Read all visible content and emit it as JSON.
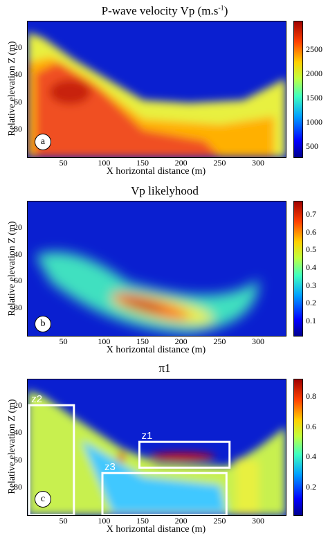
{
  "chart_data": [
    {
      "type": "heatmap",
      "title": "P-wave velocity Vp (m.s-1)",
      "title_main": "P-wave velocity Vp (m.s",
      "title_sup": "-1",
      "title_end": ")",
      "xlabel": "X horizontal distance (m)",
      "ylabel": "Relative elevation Z (m)",
      "xticks": [
        50,
        100,
        150,
        200,
        250,
        300
      ],
      "yticks": [
        20,
        40,
        60,
        80
      ],
      "xlim": [
        0,
        335
      ],
      "ylim": [
        0,
        100
      ],
      "colorbar_ticks": [
        500,
        1000,
        1500,
        2000,
        2500
      ],
      "colorbar_range": [
        300,
        3100
      ],
      "panel_label": "a"
    },
    {
      "type": "heatmap",
      "title": "Vp likelyhood",
      "xlabel": "X horizontal distance (m)",
      "ylabel": "Relative elevation Z (m)",
      "xticks": [
        50,
        100,
        150,
        200,
        250,
        300
      ],
      "yticks": [
        20,
        40,
        60,
        80
      ],
      "xlim": [
        0,
        335
      ],
      "ylim": [
        0,
        100
      ],
      "colorbar_ticks": [
        0.1,
        0.2,
        0.3,
        0.4,
        0.5,
        0.6,
        0.7
      ],
      "colorbar_range": [
        0.02,
        0.78
      ],
      "panel_label": "b"
    },
    {
      "type": "heatmap",
      "title": "π1",
      "xlabel": "X horizontal distance (m)",
      "ylabel": "Relative elevation Z (m)",
      "xticks": [
        50,
        100,
        150,
        200,
        250,
        300
      ],
      "yticks": [
        20,
        40,
        60,
        80
      ],
      "xlim": [
        0,
        335
      ],
      "ylim": [
        0,
        100
      ],
      "colorbar_ticks": [
        0.2,
        0.4,
        0.6,
        0.8
      ],
      "colorbar_range": [
        0.02,
        0.92
      ],
      "panel_label": "c",
      "zones": [
        {
          "label": "z1",
          "x": [
            145,
            262
          ],
          "z": [
            46,
            65
          ]
        },
        {
          "label": "z2",
          "x": [
            2,
            60
          ],
          "z": [
            19,
            100
          ]
        },
        {
          "label": "z3",
          "x": [
            97,
            258
          ],
          "z": [
            69,
            100
          ]
        }
      ]
    }
  ]
}
